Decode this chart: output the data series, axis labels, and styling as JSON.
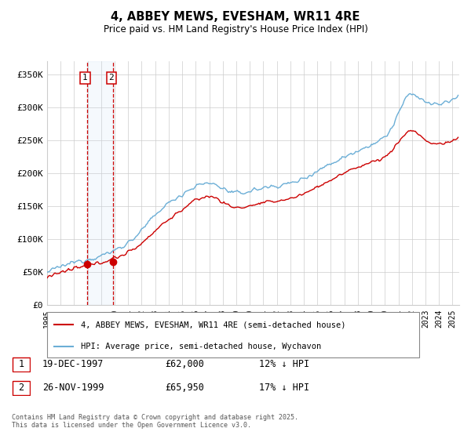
{
  "title": "4, ABBEY MEWS, EVESHAM, WR11 4RE",
  "subtitle": "Price paid vs. HM Land Registry's House Price Index (HPI)",
  "ylabel_ticks": [
    "£0",
    "£50K",
    "£100K",
    "£150K",
    "£200K",
    "£250K",
    "£300K",
    "£350K"
  ],
  "ylim": [
    0,
    370000
  ],
  "xlim_start": 1995.0,
  "xlim_end": 2025.5,
  "legend_line1": "4, ABBEY MEWS, EVESHAM, WR11 4RE (semi-detached house)",
  "legend_line2": "HPI: Average price, semi-detached house, Wychavon",
  "sale1_date": "19-DEC-1997",
  "sale1_price": "£62,000",
  "sale1_pct": "12% ↓ HPI",
  "sale1_x": 1997.97,
  "sale1_y": 62000,
  "sale2_date": "26-NOV-1999",
  "sale2_price": "£65,950",
  "sale2_pct": "17% ↓ HPI",
  "sale2_x": 1999.9,
  "sale2_y": 65950,
  "footnote": "Contains HM Land Registry data © Crown copyright and database right 2025.\nThis data is licensed under the Open Government Licence v3.0.",
  "hpi_color": "#6baed6",
  "price_color": "#cc0000",
  "vline_color": "#cc0000",
  "highlight_color": "#ddeeff"
}
